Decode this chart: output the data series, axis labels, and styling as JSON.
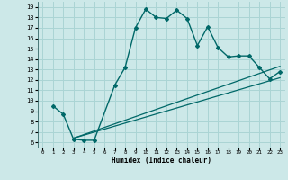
{
  "xlabel": "Humidex (Indice chaleur)",
  "bg_color": "#cce8e8",
  "grid_color": "#aad4d4",
  "line_color": "#006868",
  "xlim": [
    -0.5,
    23.5
  ],
  "ylim": [
    5.5,
    19.5
  ],
  "xticks": [
    0,
    1,
    2,
    3,
    4,
    5,
    6,
    7,
    8,
    9,
    10,
    11,
    12,
    13,
    14,
    15,
    16,
    17,
    18,
    19,
    20,
    21,
    22,
    23
  ],
  "yticks": [
    6,
    7,
    8,
    9,
    10,
    11,
    12,
    13,
    14,
    15,
    16,
    17,
    18,
    19
  ],
  "main_x": [
    1,
    2,
    3,
    4,
    5,
    7,
    8,
    9,
    10,
    11,
    12,
    13,
    14,
    15,
    16,
    17,
    18,
    19,
    20,
    21,
    22,
    23
  ],
  "main_y": [
    9.5,
    8.7,
    6.3,
    6.2,
    6.2,
    11.5,
    13.2,
    17.0,
    18.8,
    18.0,
    17.9,
    18.7,
    17.9,
    15.3,
    17.1,
    15.1,
    14.2,
    14.3,
    14.3,
    13.2,
    12.1,
    12.8
  ],
  "line1_x": [
    3,
    23
  ],
  "line1_y": [
    6.4,
    13.3
  ],
  "line2_x": [
    3,
    23
  ],
  "line2_y": [
    6.4,
    12.2
  ]
}
